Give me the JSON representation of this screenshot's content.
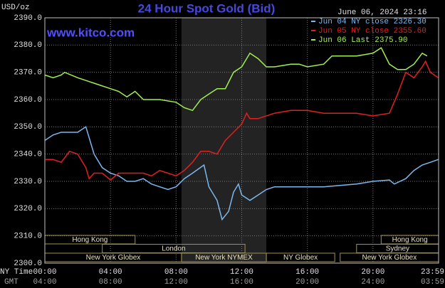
{
  "chart_data": {
    "type": "line",
    "title": "24 Hour Spot Gold (Bid)",
    "timestamp": "June 06, 2024 23:16",
    "website": "www.kitco.com",
    "y_unit": "USD/oz",
    "x_axis_labels": [
      "NY Time",
      "GMT"
    ],
    "xlim": [
      0,
      24
    ],
    "xticks": [
      {
        "value": 0,
        "label": "00:00"
      },
      {
        "value": 4,
        "label": "04:00"
      },
      {
        "value": 8,
        "label": "08:00"
      },
      {
        "value": 12,
        "label": "12:00"
      },
      {
        "value": 16,
        "label": "16:00"
      },
      {
        "value": 20,
        "label": "20:00"
      },
      {
        "value": 23.983,
        "label": "23:59"
      }
    ],
    "gmt_tick_labels": [
      "04:00",
      "08:00",
      "12:00",
      "16:00",
      "20:00",
      "24:00",
      "03:59"
    ],
    "ylim": [
      2300,
      2390
    ],
    "yticks": [
      {
        "value": 2300,
        "label": "2300.0"
      },
      {
        "value": 2310,
        "label": "2310.0"
      },
      {
        "value": 2320,
        "label": "2320.0"
      },
      {
        "value": 2330,
        "label": "2330.0"
      },
      {
        "value": 2340,
        "label": "2340.0"
      },
      {
        "value": 2350,
        "label": "2350.0"
      },
      {
        "value": 2360,
        "label": "2360.0"
      },
      {
        "value": 2370,
        "label": "2370.0"
      },
      {
        "value": 2380,
        "label": "2380.0"
      },
      {
        "value": 2390,
        "label": "2390.0"
      }
    ],
    "grid": true,
    "legend_position": "top-right",
    "highlight": [
      8.33,
      13.5
    ],
    "sessions": [
      {
        "label": "Hong Kong",
        "start": 0,
        "end": 5.5,
        "row": 0
      },
      {
        "label": "Hong Kong",
        "start": 20.5,
        "end": 24,
        "row": 0
      },
      {
        "label": "London",
        "start": 3.5,
        "end": 12.2,
        "row": 1
      },
      {
        "label": "Sydney",
        "start": 19,
        "end": 24,
        "row": 1
      },
      {
        "label": "New York Globex",
        "start": 0,
        "end": 8.33,
        "row": 2
      },
      {
        "label": "New York NYMEX",
        "start": 8.33,
        "end": 13.5,
        "row": 2
      },
      {
        "label": "NY Globex",
        "start": 13.5,
        "end": 17.67,
        "row": 2
      },
      {
        "label": "New York Globex",
        "start": 18,
        "end": 24,
        "row": 2
      }
    ],
    "series": [
      {
        "name": "Jun 04 NY close 2326.30",
        "color": "#7ab8f0",
        "x": [
          0,
          0.5,
          1,
          1.5,
          2,
          2.5,
          3,
          3.5,
          4,
          4.5,
          5,
          5.5,
          6,
          6.5,
          7,
          7.5,
          8,
          8.5,
          9,
          9.7,
          10,
          10.5,
          10.8,
          11.2,
          11.5,
          11.8,
          12,
          12.5,
          13,
          13.5,
          14,
          15,
          16,
          17,
          18,
          19,
          20,
          21,
          21.3,
          22,
          22.5,
          23,
          23.5,
          23.98
        ],
        "values": [
          2345,
          2347,
          2348,
          2348,
          2348,
          2350,
          2340,
          2335,
          2333,
          2332,
          2330,
          2330,
          2331,
          2329,
          2328,
          2327,
          2328,
          2331,
          2333,
          2336,
          2328,
          2323,
          2316,
          2319,
          2326,
          2329,
          2325,
          2323,
          2325,
          2327,
          2328,
          2328,
          2328,
          2328,
          2328.5,
          2329,
          2330,
          2330.5,
          2329,
          2331,
          2334,
          2336,
          2337,
          2338
        ]
      },
      {
        "name": "Jun 05 NY close 2355.60",
        "color": "#e02020",
        "x": [
          0,
          0.5,
          1,
          1.5,
          2,
          2.5,
          2.7,
          3,
          3.5,
          4,
          4.5,
          5,
          6,
          6.5,
          7,
          7.5,
          8,
          8.5,
          9,
          9.5,
          10,
          10.5,
          11,
          11.5,
          12,
          12.3,
          12.5,
          13,
          14,
          15,
          16,
          17,
          18,
          19,
          20,
          21,
          21.5,
          22,
          22.5,
          23,
          23.2,
          23.5,
          23.98
        ],
        "values": [
          2338,
          2338,
          2337,
          2341,
          2340,
          2335,
          2331,
          2333,
          2333,
          2330.5,
          2333,
          2333,
          2333,
          2332,
          2334,
          2333,
          2332,
          2334,
          2337,
          2341,
          2341,
          2340,
          2345,
          2348,
          2351,
          2355,
          2353,
          2353,
          2355,
          2356,
          2356,
          2355,
          2355,
          2355,
          2354,
          2355,
          2362,
          2370,
          2368,
          2372,
          2374,
          2370,
          2368
        ]
      },
      {
        "name": "Jun 06 Last 2375.90",
        "color": "#a0f050",
        "x": [
          0,
          0.5,
          1,
          1.2,
          2,
          3,
          4,
          4.5,
          5,
          5.5,
          6,
          7,
          8,
          8.5,
          9,
          9.5,
          10,
          10.5,
          11,
          11.5,
          12,
          12.5,
          13,
          13.5,
          14,
          15,
          15.5,
          16,
          17,
          17.5,
          18,
          19,
          20,
          20.5,
          21,
          21.5,
          22,
          22.5,
          23,
          23.3
        ],
        "values": [
          2369,
          2368,
          2369,
          2370,
          2368,
          2366,
          2364,
          2363,
          2361,
          2363,
          2360,
          2360,
          2359,
          2357,
          2356,
          2360,
          2362,
          2364,
          2364,
          2370,
          2372,
          2377,
          2375,
          2372,
          2372,
          2373,
          2373,
          2372,
          2373,
          2376,
          2376,
          2376,
          2377,
          2379,
          2373,
          2371,
          2371,
          2373,
          2377,
          2376
        ]
      }
    ]
  }
}
